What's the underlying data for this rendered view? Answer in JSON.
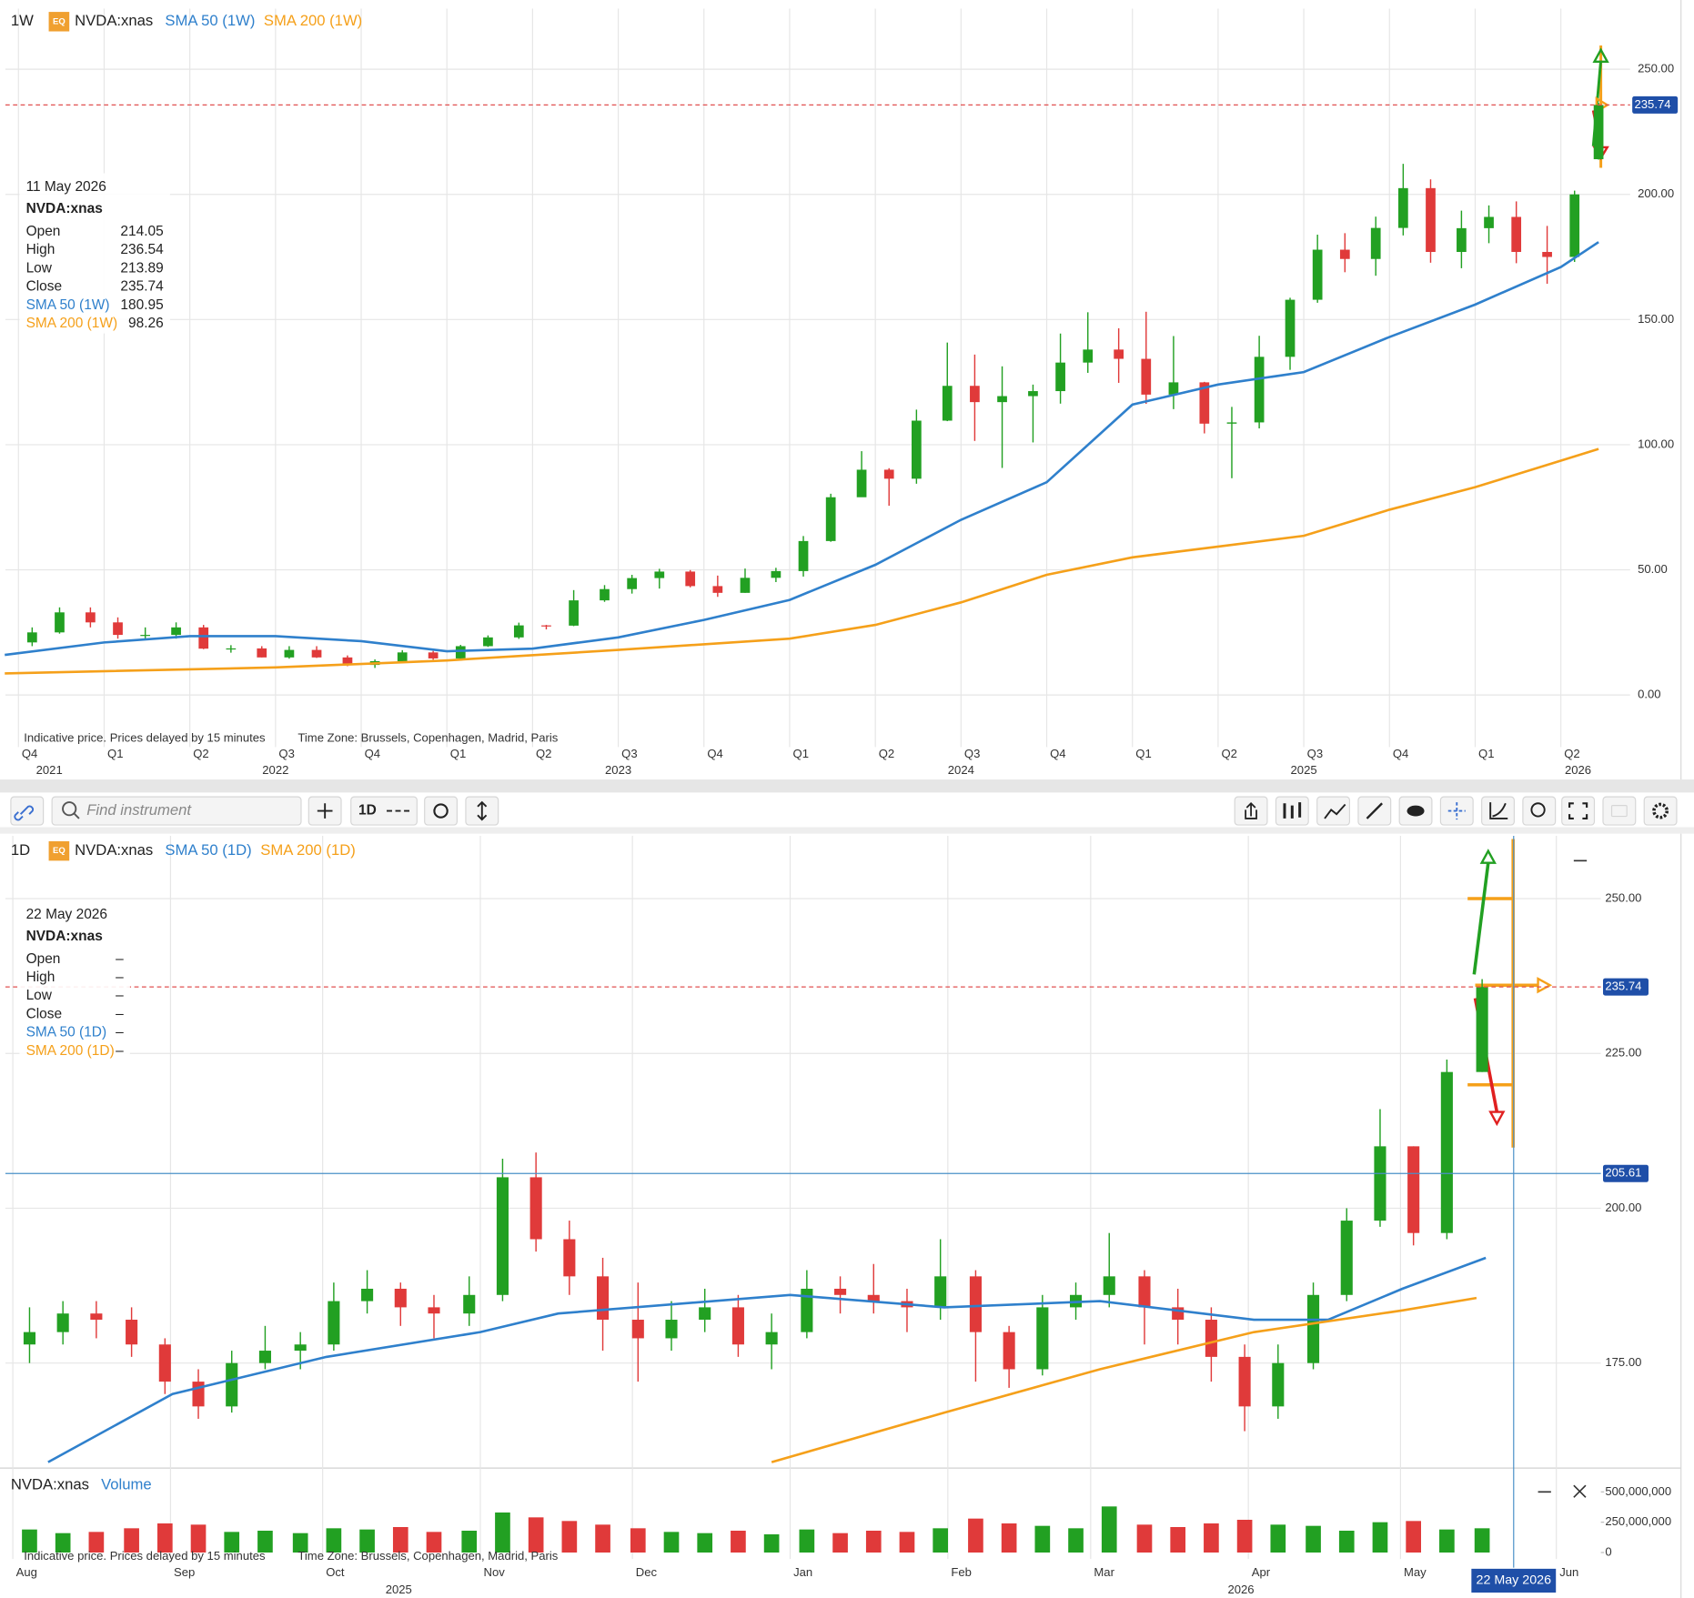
{
  "toolbar": {
    "search_placeholder": "Find instrument",
    "interval": "1D"
  },
  "chart_data": [
    {
      "type": "candlestick",
      "interval": "1W",
      "badge": "EQ",
      "symbol": "NVDA:xnas",
      "up_color": "#22a022",
      "down_color": "#e03a3a",
      "grid": true,
      "x": [
        2021.79,
        2021.87,
        2021.96,
        2022.04,
        2022.12,
        2022.21,
        2022.29,
        2022.37,
        2022.46,
        2022.54,
        2022.62,
        2022.71,
        2022.79,
        2022.87,
        2022.96,
        2023.04,
        2023.12,
        2023.21,
        2023.29,
        2023.37,
        2023.46,
        2023.54,
        2023.62,
        2023.71,
        2023.79,
        2023.87,
        2023.96,
        2024.04,
        2024.12,
        2024.21,
        2024.29,
        2024.37,
        2024.46,
        2024.54,
        2024.62,
        2024.71,
        2024.79,
        2024.87,
        2024.96,
        2025.04,
        2025.12,
        2025.21,
        2025.29,
        2025.37,
        2025.46,
        2025.54,
        2025.62,
        2025.71,
        2025.79,
        2025.87,
        2025.96,
        2026.04,
        2026.12,
        2026.21,
        2026.29,
        2026.36
      ],
      "open": [
        21,
        25,
        33,
        29,
        24,
        24,
        27,
        18.5,
        18.6,
        15,
        18,
        15,
        12,
        13.5,
        17,
        14.6,
        19.5,
        23,
        27.8,
        27.7,
        37.8,
        42.3,
        46.7,
        49.3,
        43.5,
        40.8,
        46.8,
        49.5,
        61.5,
        79,
        90,
        86.4,
        109.6,
        123.5,
        117,
        119.4,
        121.4,
        132.8,
        138,
        134.3,
        120,
        124.9,
        108.4,
        108.9,
        135.1,
        157.9,
        177.9,
        174.2,
        186.6,
        202.5,
        177,
        186.5,
        191,
        177,
        175,
        214.05
      ],
      "high": [
        27,
        35,
        35,
        31,
        27,
        29,
        28,
        19.9,
        19.5,
        19.5,
        19.5,
        15.8,
        14.2,
        17.9,
        17.6,
        20,
        23.8,
        28.9,
        28,
        41.9,
        43.9,
        48,
        50.4,
        49.9,
        47.7,
        50.5,
        50.8,
        63.5,
        80.4,
        97.4,
        90.6,
        114,
        140.8,
        136,
        131.3,
        124,
        144.4,
        152.9,
        146.5,
        153.1,
        143.4,
        125.1,
        115.1,
        143.5,
        158.7,
        183.9,
        184.5,
        191.1,
        212.2,
        206,
        193.5,
        195.6,
        197.2,
        187.4,
        201.5,
        236.54
      ],
      "low": [
        19.5,
        24.5,
        27,
        22.5,
        22,
        22.5,
        18.3,
        16.9,
        15,
        14.5,
        14.8,
        11.5,
        10.8,
        13.2,
        14.1,
        14.2,
        19.2,
        22.4,
        26.2,
        27.5,
        37.2,
        40.5,
        42.5,
        43,
        39.2,
        40.8,
        45.1,
        47.3,
        61.2,
        79.1,
        75.6,
        84.4,
        109.4,
        101.5,
        90.7,
        100.9,
        116.4,
        128.7,
        124.7,
        116.3,
        114.2,
        104.5,
        86.6,
        106.5,
        129.9,
        156.7,
        168.9,
        167.5,
        183.6,
        172.7,
        170.5,
        180.5,
        172.5,
        164.3,
        173,
        213.89
      ],
      "close": [
        25,
        33,
        29,
        24,
        24,
        27,
        18.5,
        18.6,
        15,
        18,
        15,
        12,
        13.5,
        17,
        14.6,
        19.5,
        23,
        27.8,
        27.7,
        37.8,
        42.3,
        46.7,
        49.3,
        43.5,
        40.8,
        46.8,
        49.5,
        61.5,
        79,
        90,
        86.4,
        109.6,
        123.5,
        117,
        119.4,
        121.4,
        132.8,
        138,
        134.3,
        120,
        124.9,
        108.4,
        108.9,
        135.1,
        157.9,
        177.9,
        174.2,
        186.6,
        202.5,
        177,
        186.5,
        191,
        177,
        175,
        200,
        235.74
      ],
      "series": [
        {
          "name": "SMA 50 (1W)",
          "color": "#2f80cc",
          "x": [
            2021.71,
            2022.0,
            2022.25,
            2022.5,
            2022.75,
            2023.0,
            2023.25,
            2023.5,
            2023.75,
            2024.0,
            2024.25,
            2024.5,
            2024.75,
            2025.0,
            2025.25,
            2025.5,
            2025.75,
            2026.0,
            2026.25,
            2026.36
          ],
          "values": [
            16,
            21,
            23.5,
            23.5,
            21.5,
            17.5,
            18.5,
            23,
            30,
            38,
            52,
            70,
            85,
            116,
            124,
            129,
            143,
            156,
            171,
            180.95
          ]
        },
        {
          "name": "SMA 200 (1W)",
          "color": "#f5a01a",
          "x": [
            2021.71,
            2022.5,
            2023.0,
            2023.5,
            2024.0,
            2024.25,
            2024.5,
            2024.75,
            2025.0,
            2025.5,
            2025.75,
            2026.0,
            2026.36
          ],
          "values": [
            8.6,
            11,
            13.8,
            18,
            22.5,
            28,
            37,
            48,
            55,
            63.6,
            74,
            83,
            98.26
          ]
        }
      ],
      "xlim": [
        2021.712,
        2026.452
      ],
      "ylim": [
        -20.8,
        274.2
      ],
      "yticks": [
        {
          "value": 0,
          "label": "0.00"
        },
        {
          "value": 50,
          "label": "50.00"
        },
        {
          "value": 100,
          "label": "100.00"
        },
        {
          "value": 150,
          "label": "150.00"
        },
        {
          "value": 200,
          "label": "200.00"
        },
        {
          "value": 250,
          "label": "250.00"
        }
      ],
      "xticks": [
        {
          "value": 2021.75,
          "label": "Q4"
        },
        {
          "value": 2022.0,
          "label": "Q1"
        },
        {
          "value": 2022.25,
          "label": "Q2"
        },
        {
          "value": 2022.5,
          "label": "Q3"
        },
        {
          "value": 2022.75,
          "label": "Q4"
        },
        {
          "value": 2023.0,
          "label": "Q1"
        },
        {
          "value": 2023.25,
          "label": "Q2"
        },
        {
          "value": 2023.5,
          "label": "Q3"
        },
        {
          "value": 2023.75,
          "label": "Q4"
        },
        {
          "value": 2024.0,
          "label": "Q1"
        },
        {
          "value": 2024.25,
          "label": "Q2"
        },
        {
          "value": 2024.5,
          "label": "Q3"
        },
        {
          "value": 2024.75,
          "label": "Q4"
        },
        {
          "value": 2025.0,
          "label": "Q1"
        },
        {
          "value": 2025.25,
          "label": "Q2"
        },
        {
          "value": 2025.5,
          "label": "Q3"
        },
        {
          "value": 2025.75,
          "label": "Q4"
        },
        {
          "value": 2026.0,
          "label": "Q1"
        },
        {
          "value": 2026.25,
          "label": "Q2"
        }
      ],
      "year_ticks": [
        {
          "value": 2021.84,
          "label": "2021"
        },
        {
          "value": 2022.5,
          "label": "2022"
        },
        {
          "value": 2023.5,
          "label": "2023"
        },
        {
          "value": 2024.5,
          "label": "2024"
        },
        {
          "value": 2025.5,
          "label": "2025"
        },
        {
          "value": 2026.3,
          "label": "2026"
        }
      ],
      "last_price": 235.74,
      "info_box": {
        "date": "11 May 2026",
        "symbol": "NVDA:xnas",
        "rows": [
          {
            "label": "Open",
            "value": 214.05
          },
          {
            "label": "High",
            "value": 236.54
          },
          {
            "label": "Low",
            "value": 213.89
          },
          {
            "label": "Close",
            "value": 235.74
          },
          {
            "label": "SMA 50 (1W)",
            "value": 180.95,
            "color": "#2f80cc"
          },
          {
            "label": "SMA 200 (1W)",
            "value": 98.26,
            "color": "#f5a01a"
          }
        ]
      },
      "note": "Indicative price. Prices delayed by 15 minutes",
      "time_zone": "Time Zone: Brussels, Copenhagen, Madrid, Paris"
    },
    {
      "type": "candlestick",
      "interval": "1D",
      "badge": "EQ",
      "symbol": "NVDA:xnas",
      "up_color": "#22a022",
      "down_color": "#e03a3a",
      "grid": true,
      "x": [
        2025.59,
        2025.608,
        2025.626,
        2025.645,
        2025.663,
        2025.681,
        2025.699,
        2025.717,
        2025.736,
        2025.754,
        2025.772,
        2025.79,
        2025.808,
        2025.827,
        2025.845,
        2025.863,
        2025.881,
        2025.899,
        2025.918,
        2025.936,
        2025.954,
        2025.972,
        2025.99,
        2026.009,
        2026.027,
        2026.045,
        2026.063,
        2026.081,
        2026.1,
        2026.118,
        2026.136,
        2026.154,
        2026.172,
        2026.191,
        2026.209,
        2026.227,
        2026.245,
        2026.263,
        2026.282,
        2026.3,
        2026.318,
        2026.336,
        2026.354,
        2026.373
      ],
      "open": [
        178,
        180,
        183,
        182,
        178,
        172,
        168,
        175,
        177,
        178,
        185,
        187,
        184,
        183,
        186,
        205,
        195,
        189,
        182,
        179,
        182,
        184,
        178,
        180,
        187,
        186,
        185,
        184,
        189,
        180,
        174,
        184,
        186,
        189,
        184,
        182,
        176,
        168,
        175,
        186,
        198,
        210,
        196,
        222
      ],
      "high": [
        184,
        185,
        185,
        184,
        179,
        174,
        177,
        181,
        180,
        188,
        190,
        188,
        186,
        189,
        208,
        209,
        198,
        192,
        188,
        185,
        187,
        186,
        183,
        190,
        189,
        191,
        187,
        195,
        190,
        181,
        186,
        188,
        196,
        190,
        187,
        184,
        178,
        178,
        188,
        200,
        216,
        210,
        224,
        237
      ],
      "low": [
        175,
        178,
        179,
        176,
        170,
        166,
        167,
        174,
        174,
        177,
        183,
        181,
        179,
        181,
        185,
        193,
        186,
        177,
        172,
        177,
        180,
        176,
        174,
        179,
        183,
        183,
        180,
        182,
        172,
        171,
        173,
        182,
        184,
        178,
        178,
        172,
        164,
        166,
        174,
        185,
        197,
        194,
        195,
        222
      ],
      "close": [
        180,
        183,
        182,
        178,
        172,
        168,
        175,
        177,
        178,
        185,
        187,
        184,
        183,
        186,
        205,
        195,
        189,
        182,
        179,
        182,
        184,
        178,
        180,
        187,
        186,
        185,
        184,
        189,
        180,
        174,
        184,
        186,
        189,
        184,
        182,
        176,
        168,
        175,
        186,
        198,
        210,
        196,
        222,
        235.74
      ],
      "series": [
        {
          "name": "SMA 50 (1D)",
          "color": "#2f80cc",
          "x": [
            2025.6,
            2025.667,
            2025.75,
            2025.833,
            2025.875,
            2026.0,
            2026.083,
            2026.167,
            2026.25,
            2026.29,
            2026.33,
            2026.375
          ],
          "values": [
            159,
            170,
            176,
            180,
            183,
            186,
            184,
            185,
            182,
            182,
            187,
            192
          ]
        },
        {
          "name": "SMA 200 (1D)",
          "color": "#f5a01a",
          "x": [
            2025.99,
            2026.083,
            2026.167,
            2026.25,
            2026.33,
            2026.37
          ],
          "values": [
            159,
            167,
            174,
            180,
            183.5,
            185.5
          ]
        }
      ],
      "xlim": [
        2025.577,
        2026.437
      ],
      "ylim": [
        158.74,
        260.14
      ],
      "yticks": [
        {
          "value": 175,
          "label": "175.00"
        },
        {
          "value": 200,
          "label": "200.00"
        },
        {
          "value": 225,
          "label": "225.00"
        },
        {
          "value": 250,
          "label": "250.00"
        }
      ],
      "xticks": [
        {
          "value": 2025.581,
          "label": "Aug"
        },
        {
          "value": 2025.666,
          "label": "Sep"
        },
        {
          "value": 2025.748,
          "label": "Oct"
        },
        {
          "value": 2025.833,
          "label": "Nov"
        },
        {
          "value": 2025.915,
          "label": "Dec"
        },
        {
          "value": 2026.0,
          "label": "Jan"
        },
        {
          "value": 2026.085,
          "label": "Feb"
        },
        {
          "value": 2026.162,
          "label": "Mar"
        },
        {
          "value": 2026.247,
          "label": "Apr"
        },
        {
          "value": 2026.329,
          "label": "May"
        },
        {
          "value": 2026.413,
          "label": "Jun"
        }
      ],
      "year_ticks": [
        {
          "value": 2025.789,
          "label": "2025"
        },
        {
          "value": 2026.243,
          "label": "2026"
        }
      ],
      "last_price": 235.74,
      "crosshair_price": 205.61,
      "crosshair_x": {
        "value": 2026.39,
        "label": "22 May 2026"
      },
      "info_box": {
        "date": "22 May 2026",
        "symbol": "NVDA:xnas",
        "rows": [
          {
            "label": "Open",
            "value": "–"
          },
          {
            "label": "High",
            "value": "–"
          },
          {
            "label": "Low",
            "value": "–"
          },
          {
            "label": "Close",
            "value": "–"
          },
          {
            "label": "SMA 50 (1D)",
            "value": "–",
            "color": "#2f80cc"
          },
          {
            "label": "SMA 200 (1D)",
            "value": "–",
            "color": "#f5a01a"
          }
        ]
      }
    },
    {
      "type": "volume",
      "symbol": "NVDA:xnas",
      "name": "Volume",
      "name_color": "#2f80cc",
      "up_color": "#22a022",
      "down_color": "#e03a3a",
      "values": [
        190000000,
        160000000,
        170000000,
        200000000,
        240000000,
        230000000,
        170000000,
        180000000,
        160000000,
        200000000,
        190000000,
        210000000,
        170000000,
        180000000,
        330000000,
        290000000,
        260000000,
        230000000,
        200000000,
        170000000,
        160000000,
        180000000,
        150000000,
        190000000,
        160000000,
        180000000,
        170000000,
        200000000,
        280000000,
        240000000,
        220000000,
        200000000,
        380000000,
        230000000,
        210000000,
        240000000,
        270000000,
        230000000,
        220000000,
        180000000,
        250000000,
        260000000,
        190000000,
        200000000
      ],
      "ylim": [
        -53600000,
        660700000
      ],
      "yticks": [
        0,
        {
          "value": 250000000,
          "label": "250,000,000"
        },
        {
          "value": 500000000,
          "label": "500,000,000"
        }
      ],
      "note": "Indicative price. Prices delayed by 15 minutes",
      "time_zone": "Time Zone: Brussels, Copenhagen, Madrid, Paris"
    }
  ]
}
